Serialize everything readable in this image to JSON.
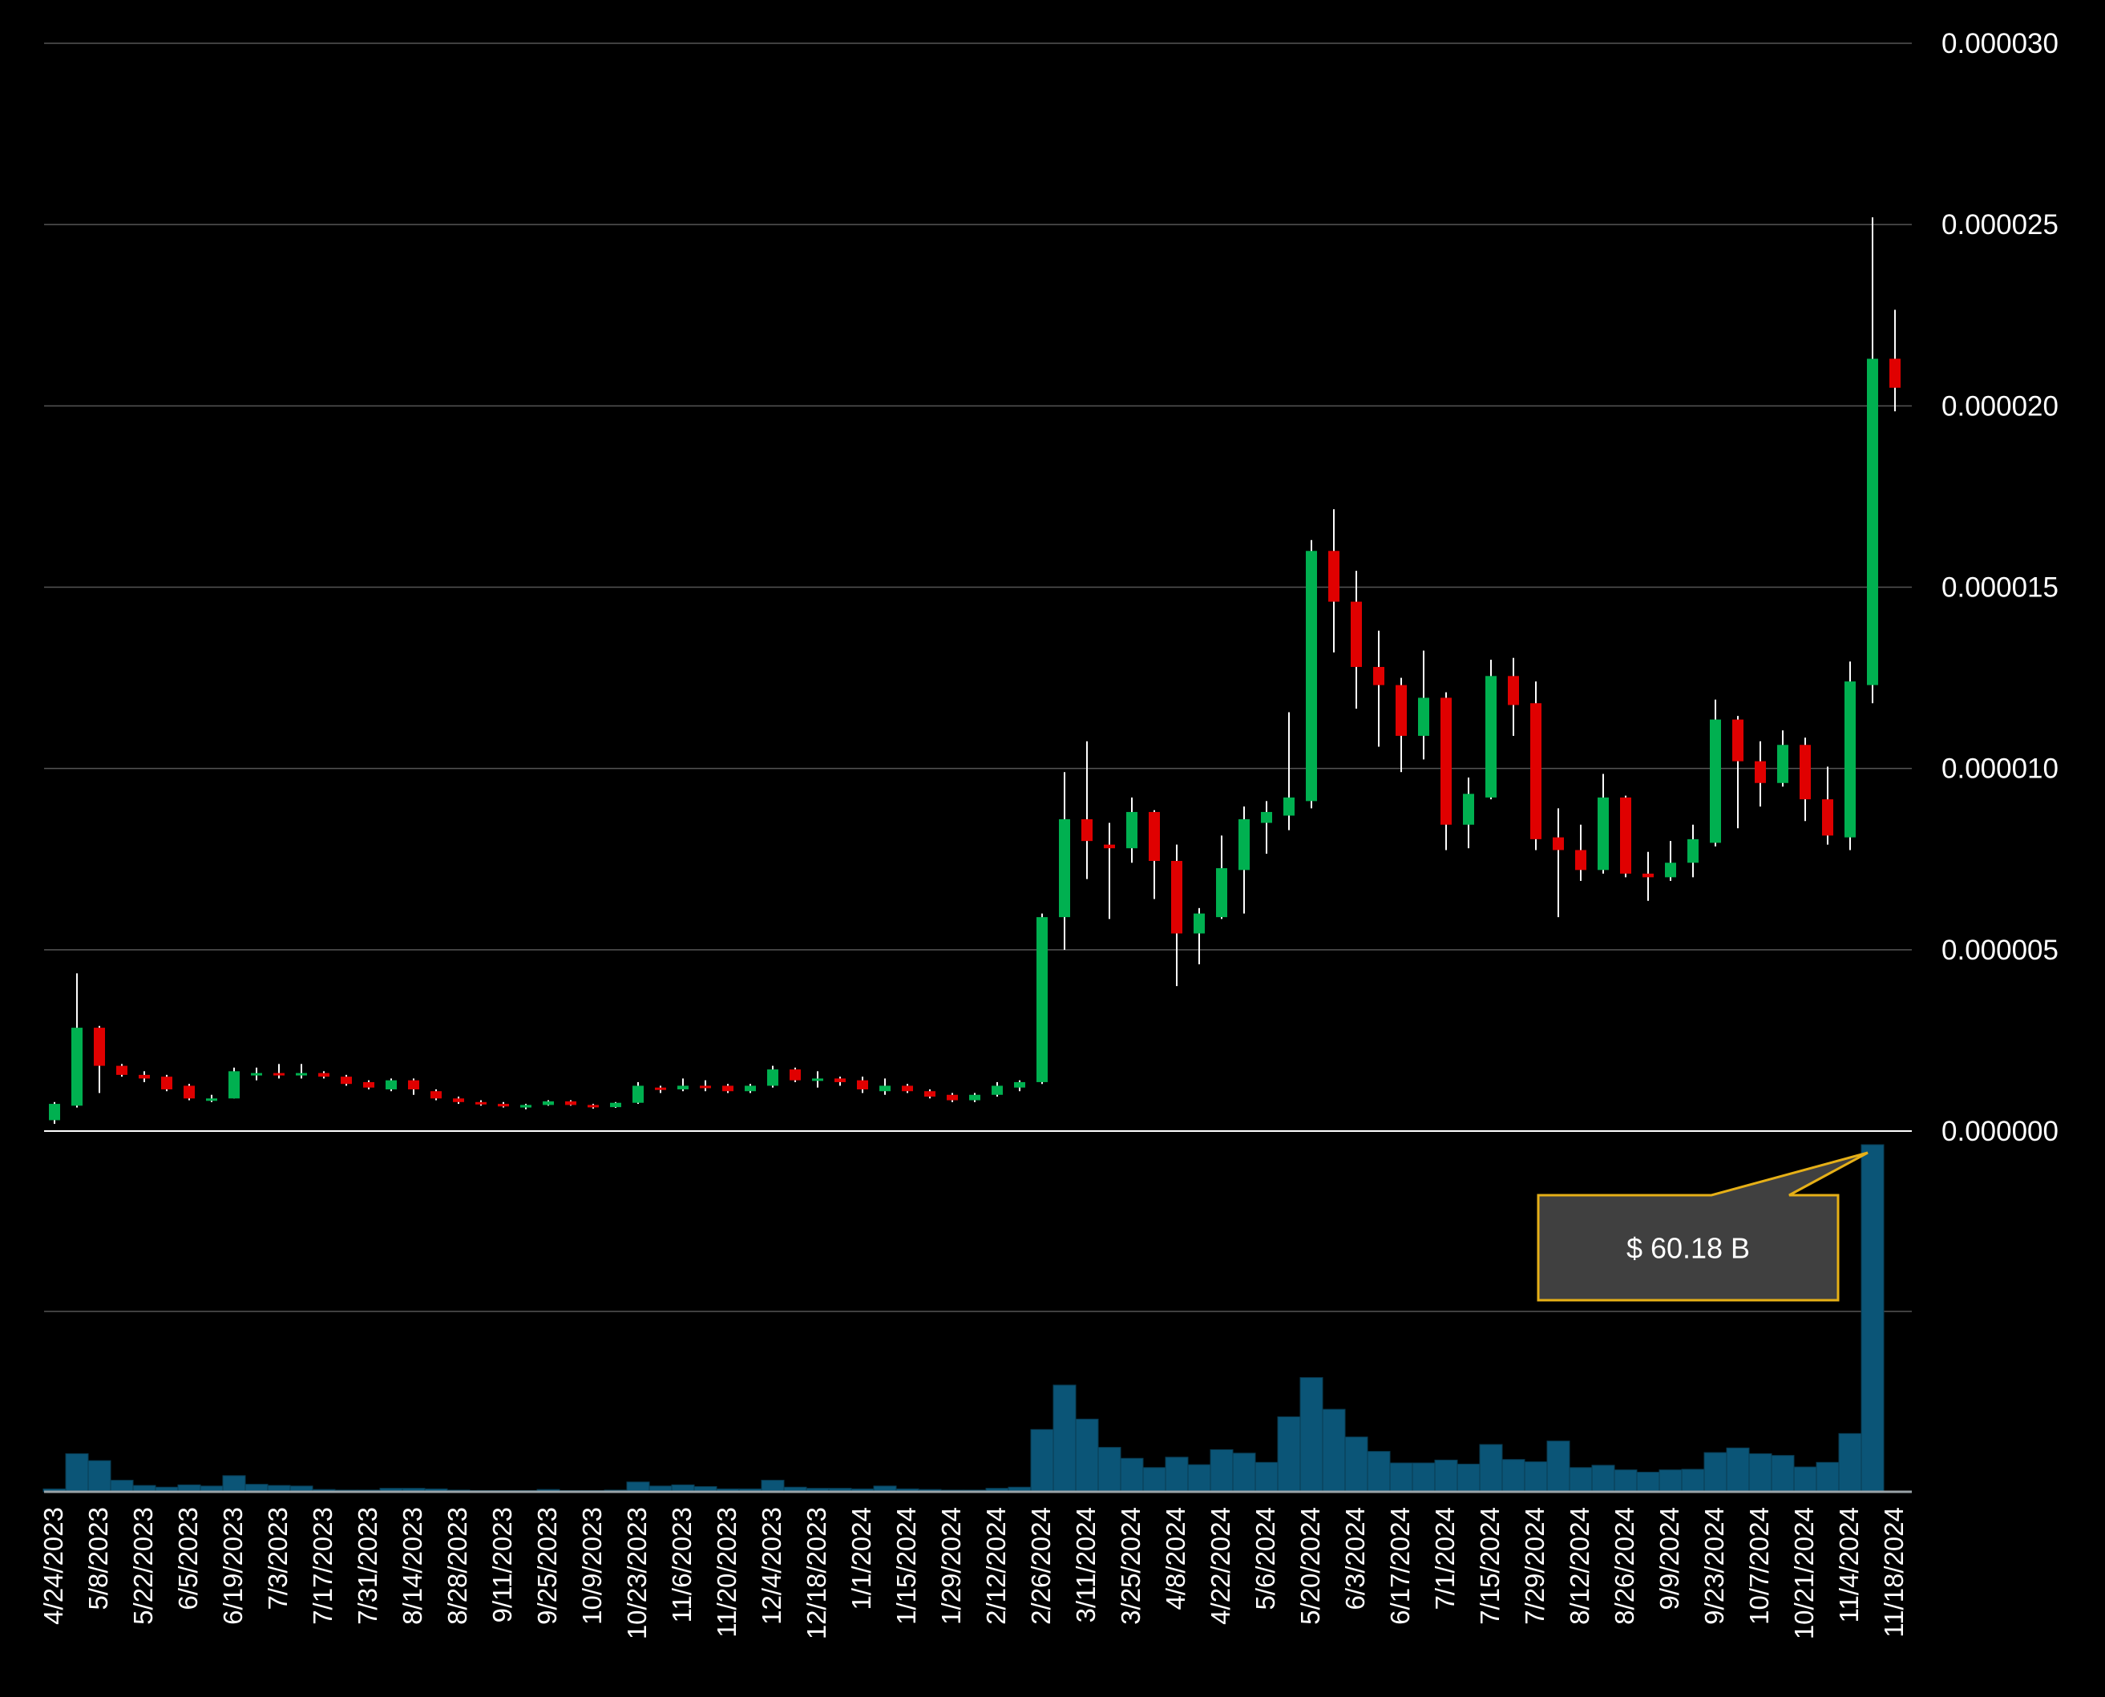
{
  "chart_data": {
    "type": "candlestick",
    "x_tick_labels": [
      "4/24/2023",
      "5/8/2023",
      "5/22/2023",
      "6/5/2023",
      "6/19/2023",
      "7/3/2023",
      "7/17/2023",
      "7/31/2023",
      "8/14/2023",
      "8/28/2023",
      "9/11/2023",
      "9/25/2023",
      "10/9/2023",
      "10/23/2023",
      "11/6/2023",
      "11/20/2023",
      "12/4/2023",
      "12/18/2023",
      "1/1/2024",
      "1/15/2024",
      "1/29/2024",
      "2/12/2024",
      "2/26/2024",
      "3/11/2024",
      "3/25/2024",
      "4/8/2024",
      "4/22/2024",
      "5/6/2024",
      "5/20/2024",
      "6/3/2024",
      "6/17/2024",
      "7/1/2024",
      "7/15/2024",
      "7/29/2024",
      "8/12/2024",
      "8/26/2024",
      "9/9/2024",
      "9/23/2024",
      "10/7/2024",
      "10/21/2024",
      "11/4/2024",
      "11/18/2024"
    ],
    "y_tick_labels": [
      "0.000000",
      "0.000005",
      "0.000010",
      "0.000015",
      "0.000020",
      "0.000025",
      "0.000030"
    ],
    "ylim": [
      0,
      3e-05
    ],
    "volume_ylim_B": [
      0,
      60.18
    ],
    "tooltip": "$ 60.18 B",
    "colors": {
      "up": "#00b050",
      "down": "#e00000",
      "wick": "#ffffff",
      "volume": "#0b5577",
      "grid": "#555555",
      "baseline": "#ffffff",
      "tooltip_bg": "#404040",
      "tooltip_border": "#e6b017"
    },
    "candles": [
      {
        "x": "4/24/2023",
        "o": 3e-07,
        "h": 8e-07,
        "l": 2e-07,
        "c": 7.5e-07
      },
      {
        "x": "5/1/2023",
        "o": 7e-07,
        "h": 4.35e-06,
        "l": 6.5e-07,
        "c": 2.85e-06
      },
      {
        "x": "5/8/2023",
        "o": 2.85e-06,
        "h": 2.9e-06,
        "l": 1.05e-06,
        "c": 1.8e-06
      },
      {
        "x": "5/15/2023",
        "o": 1.8e-06,
        "h": 1.85e-06,
        "l": 1.5e-06,
        "c": 1.55e-06
      },
      {
        "x": "5/22/2023",
        "o": 1.55e-06,
        "h": 1.65e-06,
        "l": 1.35e-06,
        "c": 1.45e-06
      },
      {
        "x": "5/29/2023",
        "o": 1.5e-06,
        "h": 1.55e-06,
        "l": 1.1e-06,
        "c": 1.15e-06
      },
      {
        "x": "6/5/2023",
        "o": 1.25e-06,
        "h": 1.3e-06,
        "l": 8.5e-07,
        "c": 9e-07
      },
      {
        "x": "6/12/2023",
        "o": 8.5e-07,
        "h": 1e-06,
        "l": 8e-07,
        "c": 9e-07
      },
      {
        "x": "6/19/2023",
        "o": 9e-07,
        "h": 1.75e-06,
        "l": 9e-07,
        "c": 1.65e-06
      },
      {
        "x": "6/26/2023",
        "o": 1.6e-06,
        "h": 1.75e-06,
        "l": 1.4e-06,
        "c": 1.6e-06
      },
      {
        "x": "7/3/2023",
        "o": 1.6e-06,
        "h": 1.85e-06,
        "l": 1.45e-06,
        "c": 1.55e-06
      },
      {
        "x": "7/10/2023",
        "o": 1.55e-06,
        "h": 1.85e-06,
        "l": 1.45e-06,
        "c": 1.6e-06
      },
      {
        "x": "7/17/2023",
        "o": 1.6e-06,
        "h": 1.65e-06,
        "l": 1.45e-06,
        "c": 1.5e-06
      },
      {
        "x": "7/24/2023",
        "o": 1.5e-06,
        "h": 1.55e-06,
        "l": 1.25e-06,
        "c": 1.3e-06
      },
      {
        "x": "7/31/2023",
        "o": 1.35e-06,
        "h": 1.4e-06,
        "l": 1.15e-06,
        "c": 1.2e-06
      },
      {
        "x": "8/7/2023",
        "o": 1.15e-06,
        "h": 1.45e-06,
        "l": 1.1e-06,
        "c": 1.4e-06
      },
      {
        "x": "8/14/2023",
        "o": 1.4e-06,
        "h": 1.45e-06,
        "l": 1e-06,
        "c": 1.15e-06
      },
      {
        "x": "8/21/2023",
        "o": 1.1e-06,
        "h": 1.15e-06,
        "l": 8.5e-07,
        "c": 9e-07
      },
      {
        "x": "8/28/2023",
        "o": 9e-07,
        "h": 9.5e-07,
        "l": 7.5e-07,
        "c": 8e-07
      },
      {
        "x": "9/4/2023",
        "o": 8e-07,
        "h": 8.5e-07,
        "l": 7e-07,
        "c": 7.5e-07
      },
      {
        "x": "9/11/2023",
        "o": 7.5e-07,
        "h": 8e-07,
        "l": 6.5e-07,
        "c": 6.8e-07
      },
      {
        "x": "9/18/2023",
        "o": 6.5e-07,
        "h": 7.5e-07,
        "l": 6e-07,
        "c": 7.2e-07
      },
      {
        "x": "9/25/2023",
        "o": 7.2e-07,
        "h": 8.5e-07,
        "l": 7e-07,
        "c": 8.2e-07
      },
      {
        "x": "10/2/2023",
        "o": 8.2e-07,
        "h": 8.5e-07,
        "l": 7e-07,
        "c": 7.2e-07
      },
      {
        "x": "10/9/2023",
        "o": 7.2e-07,
        "h": 7.5e-07,
        "l": 6.2e-07,
        "c": 6.6e-07
      },
      {
        "x": "10/16/2023",
        "o": 6.6e-07,
        "h": 8e-07,
        "l": 6.4e-07,
        "c": 7.8e-07
      },
      {
        "x": "10/23/2023",
        "o": 7.8e-07,
        "h": 1.35e-06,
        "l": 7.5e-07,
        "c": 1.25e-06
      },
      {
        "x": "10/30/2023",
        "o": 1.2e-06,
        "h": 1.25e-06,
        "l": 1.05e-06,
        "c": 1.15e-06
      },
      {
        "x": "11/6/2023",
        "o": 1.15e-06,
        "h": 1.45e-06,
        "l": 1.1e-06,
        "c": 1.25e-06
      },
      {
        "x": "11/13/2023",
        "o": 1.25e-06,
        "h": 1.4e-06,
        "l": 1.1e-06,
        "c": 1.2e-06
      },
      {
        "x": "11/20/2023",
        "o": 1.25e-06,
        "h": 1.3e-06,
        "l": 1.05e-06,
        "c": 1.1e-06
      },
      {
        "x": "11/27/2023",
        "o": 1.1e-06,
        "h": 1.3e-06,
        "l": 1.05e-06,
        "c": 1.25e-06
      },
      {
        "x": "12/4/2023",
        "o": 1.25e-06,
        "h": 1.8e-06,
        "l": 1.2e-06,
        "c": 1.7e-06
      },
      {
        "x": "12/11/2023",
        "o": 1.7e-06,
        "h": 1.75e-06,
        "l": 1.35e-06,
        "c": 1.4e-06
      },
      {
        "x": "12/18/2023",
        "o": 1.4e-06,
        "h": 1.65e-06,
        "l": 1.2e-06,
        "c": 1.45e-06
      },
      {
        "x": "12/25/2023",
        "o": 1.45e-06,
        "h": 1.5e-06,
        "l": 1.25e-06,
        "c": 1.35e-06
      },
      {
        "x": "1/1/2024",
        "o": 1.4e-06,
        "h": 1.5e-06,
        "l": 1.05e-06,
        "c": 1.15e-06
      },
      {
        "x": "1/8/2024",
        "o": 1.1e-06,
        "h": 1.45e-06,
        "l": 1e-06,
        "c": 1.25e-06
      },
      {
        "x": "1/15/2024",
        "o": 1.25e-06,
        "h": 1.3e-06,
        "l": 1.05e-06,
        "c": 1.1e-06
      },
      {
        "x": "1/22/2024",
        "o": 1.1e-06,
        "h": 1.15e-06,
        "l": 9e-07,
        "c": 9.5e-07
      },
      {
        "x": "1/29/2024",
        "o": 1e-06,
        "h": 1.05e-06,
        "l": 8e-07,
        "c": 8.5e-07
      },
      {
        "x": "2/5/2024",
        "o": 8.5e-07,
        "h": 1.05e-06,
        "l": 8e-07,
        "c": 1e-06
      },
      {
        "x": "2/12/2024",
        "o": 1e-06,
        "h": 1.35e-06,
        "l": 9.5e-07,
        "c": 1.25e-06
      },
      {
        "x": "2/19/2024",
        "o": 1.2e-06,
        "h": 1.4e-06,
        "l": 1.1e-06,
        "c": 1.35e-06
      },
      {
        "x": "2/26/2024",
        "o": 1.35e-06,
        "h": 6e-06,
        "l": 1.3e-06,
        "c": 5.9e-06
      },
      {
        "x": "3/4/2024",
        "o": 5.9e-06,
        "h": 9.9e-06,
        "l": 5e-06,
        "c": 8.6e-06
      },
      {
        "x": "3/11/2024",
        "o": 8.6e-06,
        "h": 1.075e-05,
        "l": 6.95e-06,
        "c": 8e-06
      },
      {
        "x": "3/18/2024",
        "o": 7.9e-06,
        "h": 8.5e-06,
        "l": 5.85e-06,
        "c": 7.8e-06
      },
      {
        "x": "3/25/2024",
        "o": 7.8e-06,
        "h": 9.2e-06,
        "l": 7.4e-06,
        "c": 8.8e-06
      },
      {
        "x": "4/1/2024",
        "o": 8.8e-06,
        "h": 8.85e-06,
        "l": 6.4e-06,
        "c": 7.45e-06
      },
      {
        "x": "4/8/2024",
        "o": 7.45e-06,
        "h": 7.9e-06,
        "l": 4e-06,
        "c": 5.45e-06
      },
      {
        "x": "4/15/2024",
        "o": 5.45e-06,
        "h": 6.15e-06,
        "l": 4.6e-06,
        "c": 6e-06
      },
      {
        "x": "4/22/2024",
        "o": 5.9e-06,
        "h": 8.15e-06,
        "l": 5.85e-06,
        "c": 7.25e-06
      },
      {
        "x": "4/29/2024",
        "o": 7.2e-06,
        "h": 8.95e-06,
        "l": 6e-06,
        "c": 8.6e-06
      },
      {
        "x": "5/6/2024",
        "o": 8.5e-06,
        "h": 9.1e-06,
        "l": 7.65e-06,
        "c": 8.8e-06
      },
      {
        "x": "5/13/2024",
        "o": 8.7e-06,
        "h": 1.155e-05,
        "l": 8.3e-06,
        "c": 9.2e-06
      },
      {
        "x": "5/20/2024",
        "o": 9.1e-06,
        "h": 1.63e-05,
        "l": 8.9e-06,
        "c": 1.6e-05
      },
      {
        "x": "5/27/2024",
        "o": 1.6e-05,
        "h": 1.715e-05,
        "l": 1.32e-05,
        "c": 1.46e-05
      },
      {
        "x": "6/3/2024",
        "o": 1.46e-05,
        "h": 1.545e-05,
        "l": 1.165e-05,
        "c": 1.28e-05
      },
      {
        "x": "6/10/2024",
        "o": 1.28e-05,
        "h": 1.38e-05,
        "l": 1.06e-05,
        "c": 1.23e-05
      },
      {
        "x": "6/17/2024",
        "o": 1.23e-05,
        "h": 1.25e-05,
        "l": 9.9e-06,
        "c": 1.09e-05
      },
      {
        "x": "6/24/2024",
        "o": 1.09e-05,
        "h": 1.325e-05,
        "l": 1.025e-05,
        "c": 1.195e-05
      },
      {
        "x": "7/1/2024",
        "o": 1.195e-05,
        "h": 1.21e-05,
        "l": 7.75e-06,
        "c": 8.45e-06
      },
      {
        "x": "7/8/2024",
        "o": 8.45e-06,
        "h": 9.75e-06,
        "l": 7.8e-06,
        "c": 9.3e-06
      },
      {
        "x": "7/15/2024",
        "o": 9.2e-06,
        "h": 1.3e-05,
        "l": 9.15e-06,
        "c": 1.255e-05
      },
      {
        "x": "7/22/2024",
        "o": 1.255e-05,
        "h": 1.305e-05,
        "l": 1.09e-05,
        "c": 1.175e-05
      },
      {
        "x": "7/29/2024",
        "o": 1.18e-05,
        "h": 1.24e-05,
        "l": 7.75e-06,
        "c": 8.05e-06
      },
      {
        "x": "8/5/2024",
        "o": 8.1e-06,
        "h": 8.9e-06,
        "l": 5.9e-06,
        "c": 7.75e-06
      },
      {
        "x": "8/12/2024",
        "o": 7.75e-06,
        "h": 8.45e-06,
        "l": 6.9e-06,
        "c": 7.2e-06
      },
      {
        "x": "8/19/2024",
        "o": 7.2e-06,
        "h": 9.85e-06,
        "l": 7.1e-06,
        "c": 9.2e-06
      },
      {
        "x": "8/26/2024",
        "o": 9.2e-06,
        "h": 9.25e-06,
        "l": 7e-06,
        "c": 7.1e-06
      },
      {
        "x": "9/2/2024",
        "o": 7.1e-06,
        "h": 7.7e-06,
        "l": 6.35e-06,
        "c": 7e-06
      },
      {
        "x": "9/9/2024",
        "o": 7e-06,
        "h": 8e-06,
        "l": 6.9e-06,
        "c": 7.4e-06
      },
      {
        "x": "9/16/2024",
        "o": 7.4e-06,
        "h": 8.45e-06,
        "l": 7e-06,
        "c": 8.05e-06
      },
      {
        "x": "9/23/2024",
        "o": 7.95e-06,
        "h": 1.19e-05,
        "l": 7.85e-06,
        "c": 1.135e-05
      },
      {
        "x": "9/30/2024",
        "o": 1.135e-05,
        "h": 1.145e-05,
        "l": 8.35e-06,
        "c": 1.02e-05
      },
      {
        "x": "10/7/2024",
        "o": 1.02e-05,
        "h": 1.075e-05,
        "l": 8.95e-06,
        "c": 9.6e-06
      },
      {
        "x": "10/14/2024",
        "o": 9.6e-06,
        "h": 1.105e-05,
        "l": 9.5e-06,
        "c": 1.065e-05
      },
      {
        "x": "10/21/2024",
        "o": 1.065e-05,
        "h": 1.085e-05,
        "l": 8.55e-06,
        "c": 9.15e-06
      },
      {
        "x": "10/28/2024",
        "o": 9.15e-06,
        "h": 1.005e-05,
        "l": 7.9e-06,
        "c": 8.15e-06
      },
      {
        "x": "11/4/2024",
        "o": 8.1e-06,
        "h": 1.295e-05,
        "l": 7.75e-06,
        "c": 1.24e-05
      },
      {
        "x": "11/11/2024",
        "o": 1.23e-05,
        "h": 2.52e-05,
        "l": 1.18e-05,
        "c": 2.13e-05
      },
      {
        "x": "11/18/2024",
        "o": 2.13e-05,
        "h": 2.265e-05,
        "l": 1.985e-05,
        "c": 2.05e-05
      }
    ],
    "volume_B": [
      0.5,
      6.6,
      5.4,
      2.0,
      1.1,
      0.8,
      1.2,
      1.0,
      2.8,
      1.3,
      1.1,
      1.0,
      0.4,
      0.3,
      0.3,
      0.6,
      0.6,
      0.5,
      0.3,
      0.2,
      0.2,
      0.2,
      0.4,
      0.2,
      0.2,
      0.3,
      1.7,
      1.0,
      1.2,
      0.9,
      0.5,
      0.5,
      2.0,
      0.8,
      0.6,
      0.6,
      0.5,
      1.0,
      0.5,
      0.4,
      0.3,
      0.3,
      0.6,
      0.8,
      10.8,
      18.5,
      12.6,
      7.7,
      5.8,
      4.2,
      6.0,
      4.7,
      7.3,
      6.7,
      5.1,
      13.0,
      19.8,
      14.3,
      9.5,
      7.0,
      5.0,
      5.0,
      5.5,
      4.8,
      8.2,
      5.6,
      5.2,
      8.8,
      4.2,
      4.6,
      3.8,
      3.4,
      3.8,
      3.9,
      6.8,
      7.6,
      6.6,
      6.3,
      4.3,
      5.1,
      10.1,
      60.18
    ]
  }
}
